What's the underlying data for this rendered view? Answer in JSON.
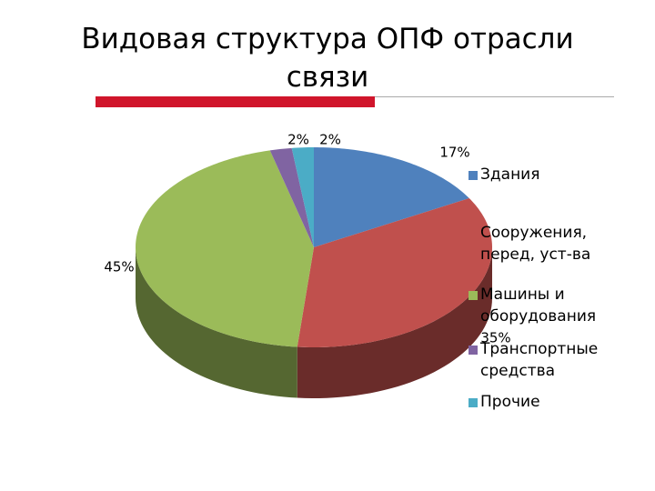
{
  "chart_data": {
    "type": "pie3d",
    "title": "Видовая структура ОПФ отрасли связи",
    "categories": [
      "Здания",
      "Сооружения, перед, уст-ва",
      "Машины и оборудования",
      "Транспортные средства",
      "Прочие"
    ],
    "values": [
      17,
      35,
      45,
      2,
      2
    ],
    "value_labels": [
      "17%",
      "35%",
      "45%",
      "2%",
      "2%"
    ],
    "colors": [
      "#4f81bd",
      "#c0504d",
      "#9bbb59",
      "#8064a2",
      "#4bacc6"
    ]
  }
}
